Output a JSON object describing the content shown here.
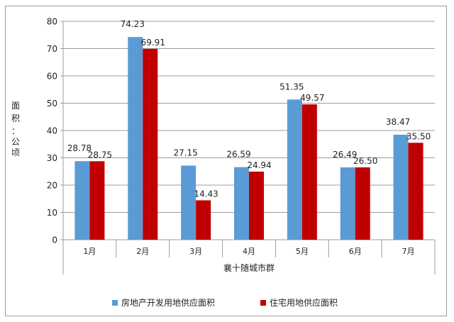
{
  "chart_data": {
    "type": "bar",
    "title": "",
    "xlabel": "襄十随城市群",
    "ylabel": "面积：公顷",
    "ylabel_chars": [
      "面",
      "积",
      "：",
      "公",
      "顷"
    ],
    "ylim": [
      0,
      80
    ],
    "yticks": [
      0,
      10,
      20,
      30,
      40,
      50,
      60,
      70,
      80
    ],
    "grid": true,
    "legend_position": "bottom",
    "categories": [
      "1月",
      "2月",
      "3月",
      "4月",
      "5月",
      "6月",
      "7月"
    ],
    "series": [
      {
        "name": "房地产开发用地供应面积",
        "color": "#5b9bd5",
        "values": [
          28.78,
          74.23,
          27.15,
          26.59,
          51.35,
          26.49,
          38.47
        ],
        "labels": [
          "28.78",
          "74.23",
          "27.15",
          "26.59",
          "51.35",
          "26.49",
          "38.47"
        ]
      },
      {
        "name": "住宅用地供应面积",
        "color": "#c00000",
        "values": [
          28.75,
          69.91,
          14.43,
          24.94,
          49.57,
          26.5,
          35.5
        ],
        "labels": [
          "28.75",
          "69.91",
          "14.43",
          "24.94",
          "49.57",
          "26.50",
          "35.50"
        ]
      }
    ]
  }
}
